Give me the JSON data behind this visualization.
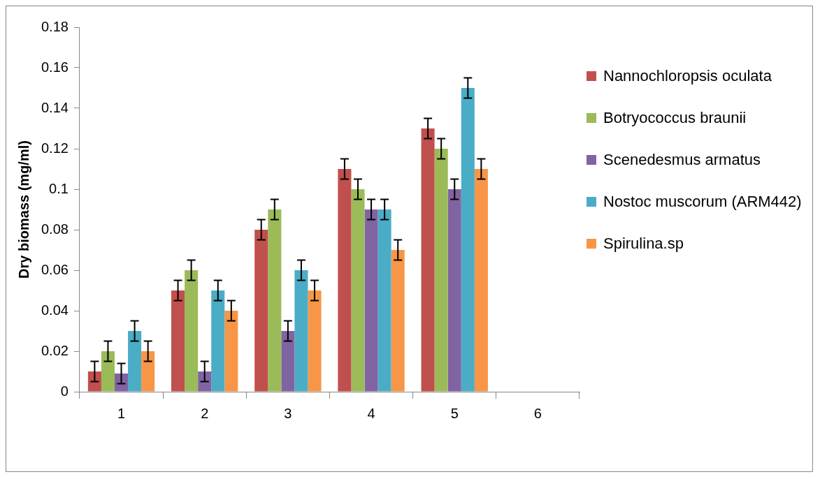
{
  "chart_data": {
    "type": "bar",
    "ylabel": "Dry biomass (mg/ml)",
    "categories": [
      "1",
      "2",
      "3",
      "4",
      "5",
      "6"
    ],
    "series": [
      {
        "name": "Nannochloropsis oculata",
        "color": "#c0504d",
        "values": [
          0.01,
          0.05,
          0.08,
          0.11,
          0.13,
          null
        ],
        "errors": [
          0.005,
          0.005,
          0.005,
          0.005,
          0.005,
          null
        ]
      },
      {
        "name": "Botryococcus braunii",
        "color": "#9bbb59",
        "values": [
          0.02,
          0.06,
          0.09,
          0.1,
          0.12,
          null
        ],
        "errors": [
          0.005,
          0.005,
          0.005,
          0.005,
          0.005,
          null
        ]
      },
      {
        "name": "Scenedesmus armatus",
        "color": "#8064a2",
        "values": [
          0.009,
          0.01,
          0.03,
          0.09,
          0.1,
          null
        ],
        "errors": [
          0.005,
          0.005,
          0.005,
          0.005,
          0.005,
          null
        ]
      },
      {
        "name": "Nostoc muscorum (ARM442)",
        "color": "#4bacc6",
        "values": [
          0.03,
          0.05,
          0.06,
          0.09,
          0.15,
          null
        ],
        "errors": [
          0.005,
          0.005,
          0.005,
          0.005,
          0.005,
          null
        ]
      },
      {
        "name": "Spirulina.sp",
        "color": "#f79646",
        "values": [
          0.02,
          0.04,
          0.05,
          0.07,
          0.11,
          null
        ],
        "errors": [
          0.005,
          0.005,
          0.005,
          0.005,
          0.005,
          null
        ]
      }
    ],
    "ylim": [
      0,
      0.18
    ],
    "yticks": [
      0,
      0.02,
      0.04,
      0.06,
      0.08,
      0.1,
      0.12,
      0.14,
      0.16,
      0.18
    ],
    "grid": false,
    "legend": "right"
  }
}
